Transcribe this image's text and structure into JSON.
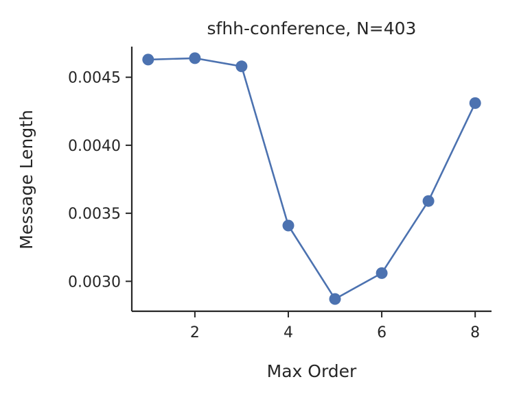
{
  "chart_data": {
    "type": "line",
    "title": "sfhh-conference, N=403",
    "xlabel": "Max Order",
    "ylabel": "Message Length",
    "x": [
      1,
      2,
      3,
      4,
      5,
      6,
      7,
      8
    ],
    "series": [
      {
        "values": [
          0.00463,
          0.00464,
          0.00458,
          0.00341,
          0.00287,
          0.00306,
          0.00359,
          0.00431
        ],
        "color": "#4c72b0",
        "marker": "circle"
      }
    ],
    "xlim": [
      0.65,
      8.35
    ],
    "ylim": [
      0.00278,
      0.004725
    ],
    "xticks": [
      2,
      4,
      6,
      8
    ],
    "xtick_labels": [
      "2",
      "4",
      "6",
      "8"
    ],
    "yticks": [
      0.003,
      0.0035,
      0.004,
      0.0045
    ],
    "ytick_labels": [
      "0.0030",
      "0.0035",
      "0.0040",
      "0.0045"
    ],
    "grid": false,
    "legend": "none"
  }
}
